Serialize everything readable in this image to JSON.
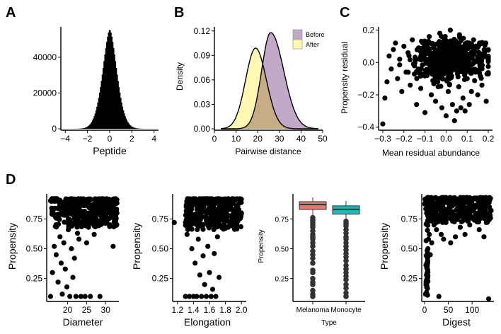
{
  "colors": {
    "before_fill": "#C3A9C9",
    "after_fill": "#FFF7B2",
    "overlap_fill": "#C7AD86",
    "melanoma": "#E07B72",
    "monocyte": "#21B5B9",
    "ink": "#000000",
    "box_points": "#333333"
  },
  "chart_data": [
    {
      "panel": "A",
      "type": "bar",
      "title": "",
      "xlabel": "Peptide",
      "ylabel": "",
      "xlim": [
        -4.4,
        4.4
      ],
      "ylim": [
        0,
        57000
      ],
      "xticks": [
        -4,
        -2,
        0,
        2,
        4
      ],
      "xtick_labels": [
        "−4",
        "−2",
        "0",
        "2",
        "4"
      ],
      "yticks": [
        0,
        20000,
        40000
      ],
      "ytick_labels": [
        "0",
        "20000",
        "40000"
      ],
      "histogram": {
        "center": 0.0,
        "sd": 0.72,
        "peak": 55500,
        "bin_width": 0.08,
        "range": [
          -4,
          4
        ]
      }
    },
    {
      "panel": "B",
      "type": "area",
      "title": "",
      "xlabel": "Pairwise distance",
      "ylabel": "Density",
      "xlim": [
        0,
        50
      ],
      "ylim": [
        0,
        0.125
      ],
      "xticks": [
        0,
        10,
        20,
        30,
        40,
        50
      ],
      "xtick_labels": [
        "0",
        "10",
        "20",
        "30",
        "40",
        "50"
      ],
      "yticks": [
        0,
        0.03,
        0.06,
        0.09,
        0.12
      ],
      "ytick_labels": [
        "0.00",
        "0.03",
        "0.06",
        "0.09",
        "0.12"
      ],
      "legend": {
        "placement": "top-right",
        "entries": [
          "Before",
          "After"
        ]
      },
      "series": [
        {
          "name": "Before",
          "mode": 26,
          "peak": 0.118,
          "sd_left": 4.2,
          "sd_right": 6.0
        },
        {
          "name": "After",
          "mode": 19,
          "peak": 0.099,
          "sd_left": 4.6,
          "sd_right": 5.0
        }
      ]
    },
    {
      "panel": "C",
      "type": "scatter",
      "title": "",
      "xlabel": "Mean residual abundance",
      "ylabel": "Propensity residual",
      "xlim": [
        -0.32,
        0.22
      ],
      "ylim": [
        -0.41,
        0.22
      ],
      "xticks": [
        -0.3,
        -0.2,
        -0.1,
        0.0,
        0.1,
        0.2
      ],
      "xtick_labels": [
        "−0.3",
        "−0.2",
        "−0.1",
        "0.0",
        "0.1",
        "0.2"
      ],
      "yticks": [
        -0.4,
        -0.2,
        0.0,
        0.2
      ],
      "ytick_labels": [
        "−0.4",
        "−0.2",
        "0.0",
        "0.2"
      ],
      "points": [
        [
          -0.3,
          -0.38
        ],
        [
          -0.29,
          -0.22
        ],
        [
          -0.28,
          -0.12
        ],
        [
          -0.27,
          0.04
        ],
        [
          -0.26,
          -0.04
        ],
        [
          -0.25,
          0.08
        ],
        [
          -0.24,
          0.12
        ],
        [
          -0.23,
          -0.1
        ],
        [
          -0.22,
          0.02
        ],
        [
          -0.21,
          -0.18
        ],
        [
          -0.2,
          0.1
        ],
        [
          -0.19,
          -0.06
        ],
        [
          -0.18,
          0.06
        ],
        [
          -0.17,
          -0.14
        ],
        [
          -0.16,
          0.14
        ],
        [
          -0.15,
          -0.02
        ],
        [
          -0.14,
          -0.26
        ],
        [
          -0.13,
          0.09
        ],
        [
          -0.12,
          -0.16
        ],
        [
          -0.11,
          0.12
        ],
        [
          -0.1,
          -0.31
        ],
        [
          -0.09,
          -0.08
        ],
        [
          -0.08,
          0.16
        ],
        [
          -0.07,
          -0.2
        ],
        [
          -0.06,
          0.04
        ],
        [
          -0.05,
          -0.24
        ],
        [
          -0.04,
          -0.12
        ],
        [
          -0.03,
          0.18
        ],
        [
          -0.02,
          -0.28
        ],
        [
          -0.01,
          -0.06
        ],
        [
          0.0,
          -0.33
        ],
        [
          0.01,
          -0.18
        ],
        [
          0.02,
          0.2
        ],
        [
          0.03,
          -0.26
        ],
        [
          0.04,
          -0.36
        ],
        [
          0.05,
          -0.3
        ],
        [
          0.06,
          -0.15
        ],
        [
          0.07,
          -0.28
        ],
        [
          0.08,
          -0.22
        ],
        [
          0.09,
          -0.3
        ],
        [
          0.1,
          -0.1
        ],
        [
          0.11,
          -0.26
        ],
        [
          0.12,
          -0.18
        ],
        [
          0.13,
          0.14
        ],
        [
          0.14,
          -0.06
        ],
        [
          0.15,
          -0.2
        ],
        [
          0.16,
          -0.02
        ],
        [
          0.17,
          -0.14
        ],
        [
          0.18,
          0.04
        ],
        [
          0.19,
          -0.24
        ]
      ],
      "cloud": {
        "center_x": 0.02,
        "center_y": 0.02,
        "sd_x": 0.08,
        "sd_y": 0.06,
        "n": 560
      }
    },
    {
      "panel": "D1",
      "type": "scatter",
      "title": "",
      "xlabel": "Diameter",
      "ylabel": "Propensity",
      "xlim": [
        14.5,
        33.5
      ],
      "ylim": [
        0.07,
        0.96
      ],
      "xticks": [
        20,
        25,
        30
      ],
      "xtick_labels": [
        "20",
        "25",
        "30"
      ],
      "yticks": [
        0.25,
        0.5,
        0.75
      ],
      "ytick_labels": [
        "0.25",
        "0.50",
        "0.75"
      ],
      "points": [
        [
          15.5,
          0.1
        ],
        [
          16,
          0.3
        ],
        [
          16.5,
          0.52
        ],
        [
          17,
          0.45
        ],
        [
          17.5,
          0.22
        ],
        [
          18,
          0.6
        ],
        [
          18.3,
          0.38
        ],
        [
          18.6,
          0.12
        ],
        [
          19,
          0.55
        ],
        [
          19.4,
          0.33
        ],
        [
          19.8,
          0.18
        ],
        [
          20.2,
          0.66
        ],
        [
          20.6,
          0.1
        ],
        [
          21,
          0.5
        ],
        [
          21.4,
          0.26
        ],
        [
          21.8,
          0.42
        ],
        [
          22.2,
          0.1
        ],
        [
          22.6,
          0.63
        ],
        [
          23,
          0.58
        ],
        [
          23.5,
          0.1
        ],
        [
          24,
          0.7
        ],
        [
          24.6,
          0.1
        ],
        [
          25,
          0.55
        ],
        [
          25.5,
          0.68
        ],
        [
          26,
          0.1
        ],
        [
          27,
          0.62
        ],
        [
          28,
          0.72
        ],
        [
          28.5,
          0.1
        ],
        [
          29,
          0.78
        ],
        [
          32,
          0.52
        ],
        [
          32.5,
          0.76
        ],
        [
          33,
          0.8
        ]
      ],
      "cloud": {
        "x_range": [
          15.5,
          33
        ],
        "y_range": [
          0.68,
          0.92
        ],
        "n": 360
      }
    },
    {
      "panel": "D2",
      "type": "scatter",
      "title": "",
      "xlabel": "Elongation",
      "ylabel": "Propensity",
      "xlim": [
        1.14,
        2.06
      ],
      "ylim": [
        0.07,
        0.96
      ],
      "xticks": [
        1.2,
        1.4,
        1.6,
        1.8,
        2.0
      ],
      "xtick_labels": [
        "1.2",
        "1.4",
        "1.6",
        "1.8",
        "2.0"
      ],
      "yticks": [
        0.25,
        0.5,
        0.75
      ],
      "ytick_labels": [
        "0.25",
        "0.50",
        "0.75"
      ],
      "points": [
        [
          1.16,
          0.72
        ],
        [
          1.3,
          0.1
        ],
        [
          1.32,
          0.62
        ],
        [
          1.35,
          0.1
        ],
        [
          1.38,
          0.5
        ],
        [
          1.4,
          0.1
        ],
        [
          1.42,
          0.38
        ],
        [
          1.44,
          0.1
        ],
        [
          1.46,
          0.58
        ],
        [
          1.48,
          0.28
        ],
        [
          1.5,
          0.1
        ],
        [
          1.52,
          0.44
        ],
        [
          1.54,
          0.2
        ],
        [
          1.56,
          0.1
        ],
        [
          1.58,
          0.52
        ],
        [
          1.6,
          0.3
        ],
        [
          1.62,
          0.1
        ],
        [
          1.64,
          0.16
        ],
        [
          1.66,
          0.46
        ],
        [
          1.68,
          0.1
        ],
        [
          1.7,
          0.6
        ],
        [
          1.72,
          0.26
        ],
        [
          1.76,
          0.68
        ],
        [
          1.82,
          0.75
        ],
        [
          1.9,
          0.72
        ],
        [
          2.0,
          0.8
        ]
      ],
      "cloud": {
        "x_range": [
          1.3,
          2.0
        ],
        "y_range": [
          0.66,
          0.92
        ],
        "n": 360
      }
    },
    {
      "panel": "D3",
      "type": "box",
      "title": "",
      "xlabel": "Type",
      "ylabel": "Propensity",
      "ylim": [
        0.07,
        0.96
      ],
      "yticks": [
        0.25,
        0.5,
        0.75
      ],
      "ytick_labels": [
        "0.25",
        "0.50",
        "0.75"
      ],
      "categories": [
        "Melanoma",
        "Monocyte"
      ],
      "boxes": [
        {
          "name": "Melanoma",
          "lower_whisker": 0.78,
          "q1": 0.83,
          "median": 0.87,
          "q3": 0.895,
          "upper_whisker": 0.93,
          "outliers": [
            0.1,
            0.12,
            0.15,
            0.2,
            0.22,
            0.25,
            0.3,
            0.32,
            0.38,
            0.42,
            0.45,
            0.48,
            0.52,
            0.55,
            0.58,
            0.6,
            0.62,
            0.65,
            0.68,
            0.7,
            0.72,
            0.74,
            0.76
          ]
        },
        {
          "name": "Monocyte",
          "lower_whisker": 0.75,
          "q1": 0.79,
          "median": 0.83,
          "q3": 0.86,
          "upper_whisker": 0.9,
          "outliers": [
            0.1,
            0.13,
            0.17,
            0.2,
            0.24,
            0.27,
            0.3,
            0.33,
            0.36,
            0.4,
            0.43,
            0.46,
            0.49,
            0.52,
            0.55,
            0.58,
            0.6,
            0.63,
            0.66,
            0.69,
            0.71,
            0.73
          ]
        }
      ]
    },
    {
      "panel": "D4",
      "type": "scatter",
      "title": "",
      "xlabel": "Digest",
      "ylabel": "Propensity",
      "xlim": [
        -6,
        146
      ],
      "ylim": [
        0.07,
        0.96
      ],
      "xticks": [
        0,
        50,
        100
      ],
      "xtick_labels": [
        "0",
        "50",
        "100"
      ],
      "yticks": [
        0.25,
        0.5,
        0.75
      ],
      "ytick_labels": [
        "0.25",
        "0.50",
        "0.75"
      ],
      "points": [
        [
          2,
          0.12
        ],
        [
          3,
          0.2
        ],
        [
          4,
          0.28
        ],
        [
          5,
          0.35
        ],
        [
          6,
          0.42
        ],
        [
          7,
          0.5
        ],
        [
          8,
          0.58
        ],
        [
          10,
          0.62
        ],
        [
          12,
          0.45
        ],
        [
          15,
          0.55
        ],
        [
          20,
          0.7
        ],
        [
          25,
          0.66
        ],
        [
          30,
          0.1
        ],
        [
          35,
          0.62
        ],
        [
          40,
          0.58
        ],
        [
          45,
          0.72
        ],
        [
          55,
          0.55
        ],
        [
          65,
          0.6
        ],
        [
          75,
          0.68
        ],
        [
          85,
          0.62
        ],
        [
          95,
          0.7
        ],
        [
          105,
          0.74
        ],
        [
          115,
          0.66
        ],
        [
          125,
          0.6
        ],
        [
          130,
          0.72
        ],
        [
          135,
          0.08
        ],
        [
          138,
          0.78
        ],
        [
          140,
          0.82
        ]
      ],
      "column": {
        "x": 5,
        "y_range": [
          0.1,
          0.9
        ],
        "n": 40
      },
      "cloud": {
        "x_range": [
          0,
          140
        ],
        "y_range": [
          0.72,
          0.93
        ],
        "n": 360
      }
    }
  ],
  "panels": {
    "A": {
      "label": "A"
    },
    "B": {
      "label": "B"
    },
    "C": {
      "label": "C"
    },
    "D": {
      "label": "D"
    }
  },
  "box_labels": {
    "melanoma": "Melanoma",
    "monocyte": "Monocyte"
  },
  "legend": {
    "before": "Before",
    "after": "After"
  }
}
